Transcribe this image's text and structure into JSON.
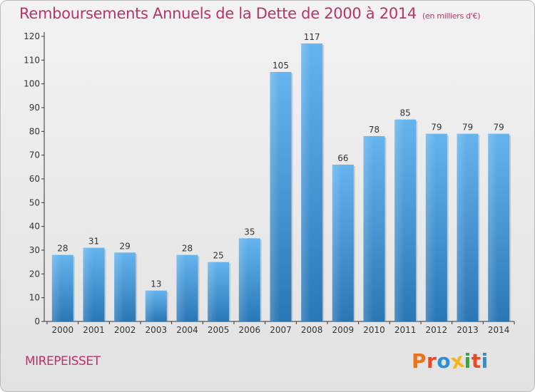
{
  "header": {
    "title": "Remboursements Annuels de la Dette de 2000 à 2014",
    "unit": "(en milliers d'€)"
  },
  "footer": {
    "commune": "MIREPEISSET",
    "logo_letters": [
      "P",
      "r",
      "o",
      "x",
      "i",
      "t",
      "i"
    ],
    "logo_colors": [
      "#e8731a",
      "#e84a21",
      "#2a8fd6",
      "#f2b51d",
      "#35a83a",
      "#e84a21",
      "#2a8fd6"
    ]
  },
  "colors": {
    "bar_light": "#63b2ec",
    "bar_dark": "#2b78b8",
    "title": "#b8326b"
  },
  "chart_data": {
    "type": "bar",
    "title": "Remboursements Annuels de la Dette de 2000 à 2014",
    "subtitle": "(en milliers d'€)",
    "xlabel": "",
    "ylabel": "",
    "ylim": [
      0,
      120
    ],
    "yticks": [
      0,
      10,
      20,
      30,
      40,
      50,
      60,
      70,
      80,
      90,
      100,
      110,
      120
    ],
    "grid": false,
    "categories": [
      "2000",
      "2001",
      "2002",
      "2003",
      "2004",
      "2005",
      "2006",
      "2007",
      "2008",
      "2009",
      "2010",
      "2011",
      "2012",
      "2013",
      "2014"
    ],
    "values": [
      28,
      31,
      29,
      13,
      28,
      25,
      35,
      105,
      117,
      66,
      78,
      85,
      79,
      79,
      79
    ]
  }
}
